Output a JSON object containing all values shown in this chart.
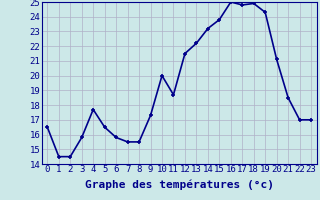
{
  "hours": [
    0,
    1,
    2,
    3,
    4,
    5,
    6,
    7,
    8,
    9,
    10,
    11,
    12,
    13,
    14,
    15,
    16,
    17,
    18,
    19,
    20,
    21,
    22,
    23
  ],
  "temps": [
    16.5,
    14.5,
    14.5,
    15.8,
    17.7,
    16.5,
    15.8,
    15.5,
    15.5,
    17.3,
    20.0,
    18.7,
    21.5,
    22.2,
    23.2,
    23.8,
    25.0,
    24.8,
    24.9,
    24.3,
    21.1,
    18.5,
    17.0,
    17.0
  ],
  "line_color": "#00008B",
  "marker": "+",
  "bg_color": "#cce8e8",
  "xlabel": "Graphe des températures (°c)",
  "ylim": [
    14,
    25
  ],
  "yticks": [
    14,
    15,
    16,
    17,
    18,
    19,
    20,
    21,
    22,
    23,
    24,
    25
  ],
  "xticks": [
    0,
    1,
    2,
    3,
    4,
    5,
    6,
    7,
    8,
    9,
    10,
    11,
    12,
    13,
    14,
    15,
    16,
    17,
    18,
    19,
    20,
    21,
    22,
    23
  ],
  "grid_color": "#b0b0c8",
  "xlabel_color": "#00008B",
  "xlabel_fontsize": 8,
  "tick_fontsize": 6.5,
  "line_width": 1.2,
  "marker_size": 3.5
}
